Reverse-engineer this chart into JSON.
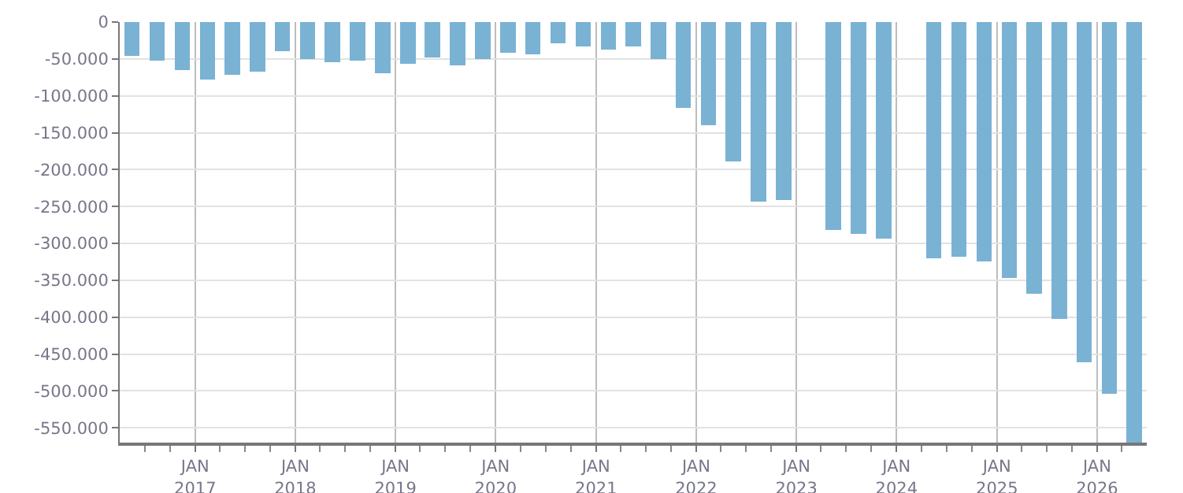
{
  "chart_data": {
    "type": "bar",
    "color": "#7ab2d4",
    "x": [
      "2016-05-16",
      "2016-08-16",
      "2016-11-15",
      "2017-02-15",
      "2017-05-16",
      "2017-08-16",
      "2017-11-15",
      "2018-02-15",
      "2018-05-16",
      "2018-08-16",
      "2018-11-15",
      "2019-02-15",
      "2019-05-16",
      "2019-08-16",
      "2019-11-15",
      "2020-02-15",
      "2020-05-16",
      "2020-08-16",
      "2020-11-15",
      "2021-02-15",
      "2021-05-16",
      "2021-08-16",
      "2021-11-15",
      "2022-02-15",
      "2022-05-16",
      "2022-08-16",
      "2022-11-15",
      "2023-02-15",
      "2023-05-16",
      "2023-08-16",
      "2023-11-15",
      "2024-02-15",
      "2024-05-16",
      "2024-08-16",
      "2024-11-15",
      "2025-02-15",
      "2025-05-16",
      "2025-08-16",
      "2025-11-15",
      "2026-02-15",
      "2026-05-16"
    ],
    "values": [
      -45700,
      -52100,
      -65000,
      -77900,
      -71400,
      -67100,
      -39300,
      -50000,
      -54300,
      -52100,
      -69300,
      -56400,
      -47900,
      -58600,
      -50000,
      -41400,
      -43600,
      -28600,
      -32900,
      -37100,
      -32900,
      -50000,
      -116400,
      -140000,
      -189300,
      -242900,
      -240700,
      null,
      -282300,
      -286600,
      -293000,
      null,
      -320000,
      -318000,
      -324000,
      -347000,
      -368000,
      -402000,
      -461000,
      -504000,
      -570000
    ],
    "xlim": [
      "2016-04-01",
      "2026-07-01"
    ],
    "xticks": [
      {
        "value": "2016-07-01",
        "label": null
      },
      {
        "value": "2016-10-01",
        "label": null
      },
      {
        "value": "2017-01-01",
        "label": "JAN\n2017"
      },
      {
        "value": "2017-04-01",
        "label": null
      },
      {
        "value": "2017-07-01",
        "label": null
      },
      {
        "value": "2017-10-01",
        "label": null
      },
      {
        "value": "2018-01-01",
        "label": "JAN\n2018"
      },
      {
        "value": "2018-04-01",
        "label": null
      },
      {
        "value": "2018-07-01",
        "label": null
      },
      {
        "value": "2018-10-01",
        "label": null
      },
      {
        "value": "2019-01-01",
        "label": "JAN\n2019"
      },
      {
        "value": "2019-04-01",
        "label": null
      },
      {
        "value": "2019-07-01",
        "label": null
      },
      {
        "value": "2019-10-01",
        "label": null
      },
      {
        "value": "2020-01-01",
        "label": "JAN\n2020"
      },
      {
        "value": "2020-04-01",
        "label": null
      },
      {
        "value": "2020-07-01",
        "label": null
      },
      {
        "value": "2020-10-01",
        "label": null
      },
      {
        "value": "2021-01-01",
        "label": "JAN\n2021"
      },
      {
        "value": "2021-04-01",
        "label": null
      },
      {
        "value": "2021-07-01",
        "label": null
      },
      {
        "value": "2021-10-01",
        "label": null
      },
      {
        "value": "2022-01-01",
        "label": "JAN\n2022"
      },
      {
        "value": "2022-04-01",
        "label": null
      },
      {
        "value": "2022-07-01",
        "label": null
      },
      {
        "value": "2022-10-01",
        "label": null
      },
      {
        "value": "2023-01-01",
        "label": "JAN\n2023"
      },
      {
        "value": "2023-04-01",
        "label": null
      },
      {
        "value": "2023-07-01",
        "label": null
      },
      {
        "value": "2023-10-01",
        "label": null
      },
      {
        "value": "2024-01-01",
        "label": "JAN\n2024"
      },
      {
        "value": "2024-04-01",
        "label": null
      },
      {
        "value": "2024-07-01",
        "label": null
      },
      {
        "value": "2024-10-01",
        "label": null
      },
      {
        "value": "2025-01-01",
        "label": "JAN\n2025"
      },
      {
        "value": "2025-04-01",
        "label": null
      },
      {
        "value": "2025-07-01",
        "label": null
      },
      {
        "value": "2025-10-01",
        "label": null
      },
      {
        "value": "2026-01-01",
        "label": "JAN\n2026"
      },
      {
        "value": "2026-04-01",
        "label": null
      }
    ],
    "ylim": [
      -570000,
      0
    ],
    "yticks": [
      0,
      {
        "value": -50000,
        "label": "-50.000"
      },
      {
        "value": -100000,
        "label": "-100.000"
      },
      {
        "value": -150000,
        "label": "-150.000"
      },
      {
        "value": -200000,
        "label": "-200.000"
      },
      {
        "value": -250000,
        "label": "-250.000"
      },
      {
        "value": -300000,
        "label": "-300.000"
      },
      {
        "value": -350000,
        "label": "-350.000"
      },
      {
        "value": -400000,
        "label": "-400.000"
      },
      {
        "value": -450000,
        "label": "-450.000"
      },
      {
        "value": -500000,
        "label": "-500.000"
      },
      {
        "value": -550000,
        "label": "-550.000"
      }
    ],
    "grid": true
  }
}
